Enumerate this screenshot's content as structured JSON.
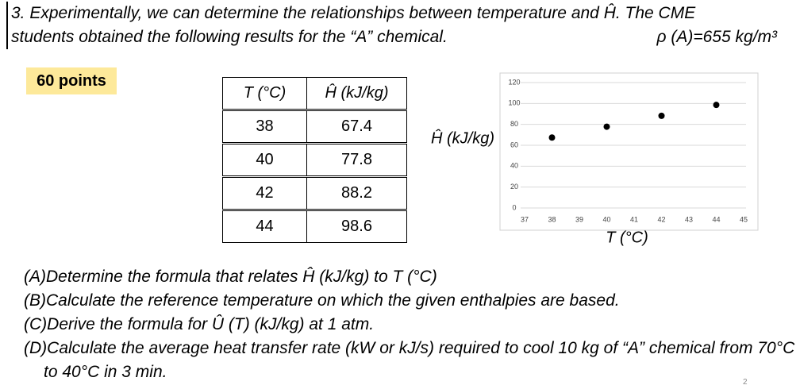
{
  "header": {
    "line1": "3. Experimentally, we can determine the relationships between temperature and Ĥ. The CME",
    "line2": "students obtained the following results for the “A” chemical.",
    "density": "ρ (A)=655 kg/m³"
  },
  "badge": "60 points",
  "table": {
    "columns": [
      "T (°C)",
      "Ĥ (kJ/kg)"
    ],
    "rows": [
      [
        38,
        67.4
      ],
      [
        40,
        77.8
      ],
      [
        42,
        88.2
      ],
      [
        44,
        98.6
      ]
    ]
  },
  "chart_data": {
    "type": "scatter",
    "x_label": "T (°C)",
    "y_label": "Ĥ (kJ/kg)",
    "x": [
      38,
      40,
      42,
      44
    ],
    "values": [
      67.4,
      77.8,
      88.2,
      98.6
    ],
    "color": "#000000",
    "xlim": [
      37,
      45
    ],
    "xticks": [
      37,
      38,
      39,
      40,
      41,
      42,
      43,
      44,
      45
    ],
    "ylim": [
      0,
      120
    ],
    "yticks": [
      0,
      20,
      40,
      60,
      80,
      100,
      120
    ],
    "grid": true
  },
  "questions": [
    "(A)Determine the formula that relates Ĥ (kJ/kg) to T (°C)",
    "(B)Calculate the reference temperature on which the given enthalpies are based.",
    "(C)Derive the formula for Û (T) (kJ/kg) at 1 atm.",
    "(D)Calculate the average heat transfer rate (kW or kJ/s) required to cool 10 kg of “A” chemical from 70°C to 40°C in 3 min."
  ],
  "page_number": "2"
}
